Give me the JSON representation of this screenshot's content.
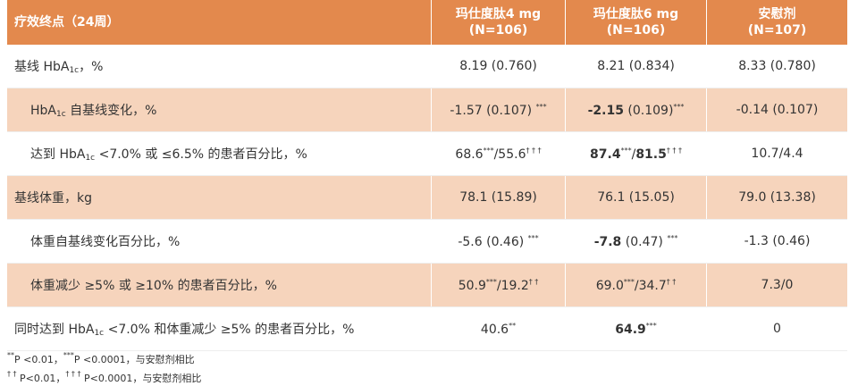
{
  "table": {
    "header": [
      [
        "疗效终点（24周）"
      ],
      [
        "玛仕度肽4 mg",
        "(N=106)"
      ],
      [
        "玛仕度肽6 mg",
        "(N=106)"
      ],
      [
        "安慰剂",
        "(N=107)"
      ]
    ],
    "rows": [
      [
        [
          "基线 HbA",
          {
            "sub": "1c"
          },
          "，%"
        ],
        [
          "8.19 (0.760)"
        ],
        [
          "8.21 (0.834)"
        ],
        [
          "8.33 (0.780)"
        ]
      ],
      [
        [
          "HbA",
          {
            "sub": "1c"
          },
          " 自基线变化，%"
        ],
        [
          "-1.57 (0.107) ",
          {
            "sup": "***"
          }
        ],
        [
          {
            "b": "-2.15"
          },
          " (0.109)",
          {
            "sup": "***"
          }
        ],
        [
          "-0.14 (0.107)"
        ]
      ],
      [
        [
          "达到 HbA",
          {
            "sub": "1c"
          },
          " <7.0% 或 ≤6.5% 的患者百分比，%"
        ],
        [
          "68.6",
          {
            "sup": "***"
          },
          "/55.6",
          {
            "sup": "† † †"
          }
        ],
        [
          {
            "b": "87.4"
          },
          {
            "sup": "***"
          },
          "/",
          {
            "b": "81.5"
          },
          {
            "sup": "† † †"
          }
        ],
        [
          "10.7/4.4"
        ]
      ],
      [
        [
          "基线体重，kg"
        ],
        [
          "78.1 (15.89)"
        ],
        [
          "76.1 (15.05)"
        ],
        [
          "79.0 (13.38)"
        ]
      ],
      [
        [
          "体重自基线变化百分比，%"
        ],
        [
          "-5.6 (0.46) ",
          {
            "sup": "***"
          }
        ],
        [
          {
            "b": "-7.8"
          },
          " (0.47) ",
          {
            "sup": "***"
          }
        ],
        [
          "-1.3 (0.46)"
        ]
      ],
      [
        [
          "体重减少 ≥5% 或 ≥10% 的患者百分比，%"
        ],
        [
          "50.9",
          {
            "sup": "***"
          },
          "/19.2",
          {
            "sup": "† †"
          }
        ],
        [
          "69.0",
          {
            "sup": "***"
          },
          "/34.7",
          {
            "sup": "† †"
          }
        ],
        [
          "7.3/0"
        ]
      ],
      [
        [
          "同时达到 HbA",
          {
            "sub": "1c"
          },
          " <7.0% 和体重减少 ≥5% 的患者百分比，%"
        ],
        [
          "40.6",
          {
            "sup": "**"
          }
        ],
        [
          {
            "b": "64.9"
          },
          {
            "sup": "***"
          }
        ],
        [
          "0"
        ]
      ]
    ]
  },
  "footnotes": [
    [
      {
        "sup": "**"
      },
      "P <0.01，",
      {
        "sup": "***"
      },
      "P <0.0001，与安慰剂相比"
    ],
    [
      {
        "sup": "† †"
      },
      " P<0.01，",
      {
        "sup": "† † †"
      },
      " P<0.0001，与安慰剂相比"
    ]
  ]
}
